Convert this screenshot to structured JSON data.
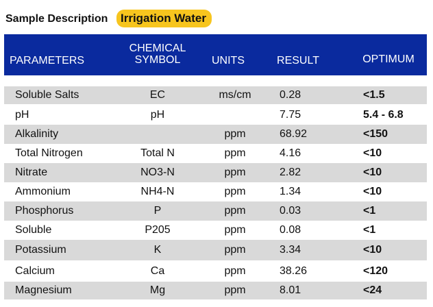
{
  "sample": {
    "label": "Sample Description",
    "value": "Irrigation Water"
  },
  "table": {
    "headers": {
      "parameters": "PARAMETERS",
      "chemical": "CHEMICAL",
      "symbol": "SYMBOL",
      "units": "UNITS",
      "result": "RESULT",
      "optimum": "OPTIMUM"
    },
    "rows": [
      {
        "parameter": "Soluble Salts",
        "symbol": "EC",
        "units": "ms/cm",
        "result": "0.28",
        "optimum": "<1.5"
      },
      {
        "parameter": "pH",
        "symbol": "pH",
        "units": "",
        "result": "7.75",
        "optimum": "5.4 - 6.8"
      },
      {
        "parameter": "Alkalinity",
        "symbol": "",
        "units": "ppm",
        "result": "68.92",
        "optimum": "<150"
      },
      {
        "parameter": "Total Nitrogen",
        "symbol": "Total N",
        "units": "ppm",
        "result": "4.16",
        "optimum": "<10"
      },
      {
        "parameter": "Nitrate",
        "symbol": "NO3-N",
        "units": "ppm",
        "result": "2.82",
        "optimum": "<10"
      },
      {
        "parameter": "Ammonium",
        "symbol": "NH4-N",
        "units": "ppm",
        "result": "1.34",
        "optimum": "<10"
      },
      {
        "parameter": "Phosphorus",
        "symbol": "P",
        "units": "ppm",
        "result": "0.03",
        "optimum": "<1"
      },
      {
        "parameter": "Soluble",
        "symbol": "P205",
        "units": "ppm",
        "result": "0.08",
        "optimum": "<1"
      },
      {
        "parameter": "Potassium",
        "symbol": "K",
        "units": "ppm",
        "result": "3.34",
        "optimum": "<10"
      },
      {
        "parameter": "Calcium",
        "symbol": "Ca",
        "units": "ppm",
        "result": "38.26",
        "optimum": "<120"
      },
      {
        "parameter": "Magnesium",
        "symbol": "Mg",
        "units": "ppm",
        "result": "8.01",
        "optimum": "<24"
      }
    ]
  }
}
